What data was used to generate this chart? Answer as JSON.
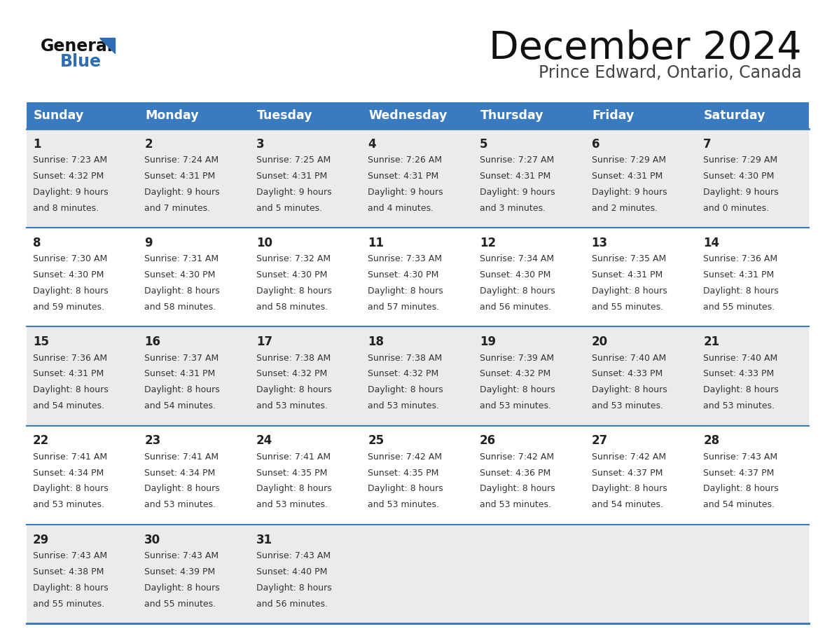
{
  "title": "December 2024",
  "subtitle": "Prince Edward, Ontario, Canada",
  "days_of_week": [
    "Sunday",
    "Monday",
    "Tuesday",
    "Wednesday",
    "Thursday",
    "Friday",
    "Saturday"
  ],
  "header_bg": "#3a7abf",
  "header_text": "#ffffff",
  "bg_color": "#ffffff",
  "cell_bg_light": "#ebebeb",
  "cell_bg_white": "#ffffff",
  "line_color": "#3a7abf",
  "day_num_color": "#222222",
  "cell_text_color": "#333333",
  "title_color": "#111111",
  "subtitle_color": "#444444",
  "logo_general_color": "#111111",
  "logo_blue_color": "#2e6db4",
  "calendar_data": [
    {
      "day": 1,
      "sunrise": "7:23 AM",
      "sunset": "4:32 PM",
      "daylight_h": "9 hours",
      "daylight_m": "8 minutes."
    },
    {
      "day": 2,
      "sunrise": "7:24 AM",
      "sunset": "4:31 PM",
      "daylight_h": "9 hours",
      "daylight_m": "7 minutes."
    },
    {
      "day": 3,
      "sunrise": "7:25 AM",
      "sunset": "4:31 PM",
      "daylight_h": "9 hours",
      "daylight_m": "5 minutes."
    },
    {
      "day": 4,
      "sunrise": "7:26 AM",
      "sunset": "4:31 PM",
      "daylight_h": "9 hours",
      "daylight_m": "4 minutes."
    },
    {
      "day": 5,
      "sunrise": "7:27 AM",
      "sunset": "4:31 PM",
      "daylight_h": "9 hours",
      "daylight_m": "3 minutes."
    },
    {
      "day": 6,
      "sunrise": "7:29 AM",
      "sunset": "4:31 PM",
      "daylight_h": "9 hours",
      "daylight_m": "2 minutes."
    },
    {
      "day": 7,
      "sunrise": "7:29 AM",
      "sunset": "4:30 PM",
      "daylight_h": "9 hours",
      "daylight_m": "0 minutes."
    },
    {
      "day": 8,
      "sunrise": "7:30 AM",
      "sunset": "4:30 PM",
      "daylight_h": "8 hours",
      "daylight_m": "59 minutes."
    },
    {
      "day": 9,
      "sunrise": "7:31 AM",
      "sunset": "4:30 PM",
      "daylight_h": "8 hours",
      "daylight_m": "58 minutes."
    },
    {
      "day": 10,
      "sunrise": "7:32 AM",
      "sunset": "4:30 PM",
      "daylight_h": "8 hours",
      "daylight_m": "58 minutes."
    },
    {
      "day": 11,
      "sunrise": "7:33 AM",
      "sunset": "4:30 PM",
      "daylight_h": "8 hours",
      "daylight_m": "57 minutes."
    },
    {
      "day": 12,
      "sunrise": "7:34 AM",
      "sunset": "4:30 PM",
      "daylight_h": "8 hours",
      "daylight_m": "56 minutes."
    },
    {
      "day": 13,
      "sunrise": "7:35 AM",
      "sunset": "4:31 PM",
      "daylight_h": "8 hours",
      "daylight_m": "55 minutes."
    },
    {
      "day": 14,
      "sunrise": "7:36 AM",
      "sunset": "4:31 PM",
      "daylight_h": "8 hours",
      "daylight_m": "55 minutes."
    },
    {
      "day": 15,
      "sunrise": "7:36 AM",
      "sunset": "4:31 PM",
      "daylight_h": "8 hours",
      "daylight_m": "54 minutes."
    },
    {
      "day": 16,
      "sunrise": "7:37 AM",
      "sunset": "4:31 PM",
      "daylight_h": "8 hours",
      "daylight_m": "54 minutes."
    },
    {
      "day": 17,
      "sunrise": "7:38 AM",
      "sunset": "4:32 PM",
      "daylight_h": "8 hours",
      "daylight_m": "53 minutes."
    },
    {
      "day": 18,
      "sunrise": "7:38 AM",
      "sunset": "4:32 PM",
      "daylight_h": "8 hours",
      "daylight_m": "53 minutes."
    },
    {
      "day": 19,
      "sunrise": "7:39 AM",
      "sunset": "4:32 PM",
      "daylight_h": "8 hours",
      "daylight_m": "53 minutes."
    },
    {
      "day": 20,
      "sunrise": "7:40 AM",
      "sunset": "4:33 PM",
      "daylight_h": "8 hours",
      "daylight_m": "53 minutes."
    },
    {
      "day": 21,
      "sunrise": "7:40 AM",
      "sunset": "4:33 PM",
      "daylight_h": "8 hours",
      "daylight_m": "53 minutes."
    },
    {
      "day": 22,
      "sunrise": "7:41 AM",
      "sunset": "4:34 PM",
      "daylight_h": "8 hours",
      "daylight_m": "53 minutes."
    },
    {
      "day": 23,
      "sunrise": "7:41 AM",
      "sunset": "4:34 PM",
      "daylight_h": "8 hours",
      "daylight_m": "53 minutes."
    },
    {
      "day": 24,
      "sunrise": "7:41 AM",
      "sunset": "4:35 PM",
      "daylight_h": "8 hours",
      "daylight_m": "53 minutes."
    },
    {
      "day": 25,
      "sunrise": "7:42 AM",
      "sunset": "4:35 PM",
      "daylight_h": "8 hours",
      "daylight_m": "53 minutes."
    },
    {
      "day": 26,
      "sunrise": "7:42 AM",
      "sunset": "4:36 PM",
      "daylight_h": "8 hours",
      "daylight_m": "53 minutes."
    },
    {
      "day": 27,
      "sunrise": "7:42 AM",
      "sunset": "4:37 PM",
      "daylight_h": "8 hours",
      "daylight_m": "54 minutes."
    },
    {
      "day": 28,
      "sunrise": "7:43 AM",
      "sunset": "4:37 PM",
      "daylight_h": "8 hours",
      "daylight_m": "54 minutes."
    },
    {
      "day": 29,
      "sunrise": "7:43 AM",
      "sunset": "4:38 PM",
      "daylight_h": "8 hours",
      "daylight_m": "55 minutes."
    },
    {
      "day": 30,
      "sunrise": "7:43 AM",
      "sunset": "4:39 PM",
      "daylight_h": "8 hours",
      "daylight_m": "55 minutes."
    },
    {
      "day": 31,
      "sunrise": "7:43 AM",
      "sunset": "4:40 PM",
      "daylight_h": "8 hours",
      "daylight_m": "56 minutes."
    }
  ]
}
